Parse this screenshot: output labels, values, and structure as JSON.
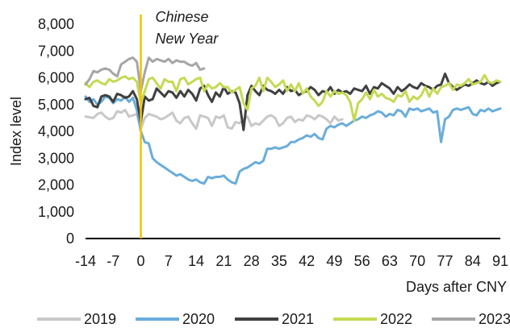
{
  "chart_data": {
    "type": "line",
    "xlabel": "Days after CNY",
    "ylabel": "Index level",
    "xlim": [
      -14,
      91
    ],
    "ylim": [
      0,
      8000
    ],
    "x_ticks": [
      -14,
      -7,
      0,
      7,
      14,
      21,
      28,
      35,
      42,
      49,
      56,
      63,
      70,
      77,
      84,
      91
    ],
    "y_ticks": [
      0,
      1000,
      2000,
      3000,
      4000,
      5000,
      6000,
      7000,
      8000
    ],
    "y_tick_labels": [
      "0",
      "1,000",
      "2,000",
      "3,000",
      "4,000",
      "5,000",
      "6,000",
      "7,000",
      "8,000"
    ],
    "grid": false,
    "legend_position": "bottom",
    "annotation": {
      "x": 0,
      "line1": "Chinese",
      "line2": "New Year",
      "color": "#F2C200"
    },
    "series": [
      {
        "name": "2019",
        "color": "#c8c8c8",
        "x": [
          -14,
          -12,
          -11,
          -10,
          -9,
          -8,
          -7,
          -6,
          -5,
          -4,
          -3,
          -2,
          -1,
          0,
          1,
          2,
          3,
          4,
          5,
          6,
          7,
          8,
          9,
          10,
          11,
          12,
          13,
          14,
          15,
          16,
          17,
          18,
          19,
          20,
          21,
          22,
          23,
          24,
          25,
          26,
          27,
          28,
          29,
          30,
          31,
          32,
          33,
          34,
          35,
          36,
          37,
          38,
          39,
          40,
          41,
          42,
          43,
          44,
          45,
          46,
          47,
          48,
          49,
          50,
          51
        ],
        "values": [
          4550,
          4500,
          4650,
          4700,
          4550,
          4450,
          4500,
          4750,
          4700,
          4800,
          4550,
          4600,
          4650,
          4100,
          4500,
          4650,
          4600,
          4550,
          4450,
          4500,
          4600,
          4700,
          4400,
          4300,
          4500,
          4550,
          4300,
          4100,
          4600,
          4550,
          4500,
          4200,
          4550,
          4500,
          4600,
          4150,
          4100,
          4350,
          4300,
          4450,
          4550,
          4200,
          4300,
          4250,
          4400,
          4550,
          4600,
          4500,
          4200,
          4300,
          4500,
          4550,
          4350,
          4450,
          4400,
          4600,
          4550,
          4450,
          4600,
          4550,
          4450,
          4300,
          4550,
          4400,
          4450
        ]
      },
      {
        "name": "2020",
        "color": "#6AADDB",
        "x": [
          -14,
          -13,
          -12,
          -11,
          -10,
          -9,
          -8,
          -7,
          -6,
          -5,
          -4,
          -3,
          -2,
          -1,
          0,
          1,
          2,
          3,
          4,
          5,
          6,
          7,
          8,
          9,
          10,
          11,
          12,
          13,
          14,
          15,
          16,
          17,
          18,
          19,
          20,
          21,
          22,
          23,
          24,
          25,
          26,
          27,
          28,
          29,
          30,
          31,
          32,
          33,
          34,
          35,
          36,
          37,
          38,
          39,
          40,
          41,
          42,
          43,
          44,
          45,
          46,
          47,
          48,
          49,
          50,
          51,
          52,
          53,
          54,
          55,
          56,
          57,
          58,
          59,
          60,
          61,
          62,
          63,
          64,
          65,
          66,
          67,
          68,
          69,
          70,
          71,
          72,
          73,
          74,
          75,
          76,
          77,
          78,
          79,
          80,
          81,
          82,
          83,
          84,
          85,
          86,
          87,
          88,
          89,
          90,
          91
        ],
        "values": [
          5300,
          5100,
          5200,
          5000,
          5100,
          5300,
          5250,
          5050,
          5200,
          5150,
          5300,
          5100,
          5250,
          4800,
          4000,
          3600,
          3550,
          3000,
          2850,
          2750,
          2650,
          2550,
          2450,
          2350,
          2400,
          2300,
          2200,
          2150,
          2200,
          2100,
          2050,
          2300,
          2250,
          2300,
          2300,
          2350,
          2200,
          2100,
          2050,
          2500,
          2600,
          2650,
          2750,
          2850,
          2800,
          2900,
          3350,
          3350,
          3400,
          3350,
          3400,
          3450,
          3600,
          3600,
          3700,
          3750,
          3850,
          3800,
          3900,
          3750,
          3700,
          4100,
          4200,
          4150,
          4250,
          4300,
          4200,
          4300,
          4400,
          4450,
          4550,
          4500,
          4600,
          4650,
          4750,
          4700,
          4550,
          4650,
          4600,
          4800,
          4750,
          4550,
          4850,
          4800,
          4850,
          4750,
          4800,
          4850,
          4700,
          4750,
          3600,
          4450,
          4550,
          4800,
          4850,
          4800,
          4850,
          4900,
          4650,
          4600,
          4800,
          4750,
          4850,
          4750,
          4800,
          4850
        ]
      },
      {
        "name": "2021",
        "color": "#404040",
        "x": [
          -14,
          -13,
          -12,
          -11,
          -10,
          -9,
          -8,
          -7,
          -6,
          -5,
          -4,
          -3,
          -2,
          -1,
          0,
          1,
          2,
          3,
          4,
          5,
          6,
          7,
          8,
          9,
          10,
          11,
          12,
          13,
          14,
          15,
          16,
          17,
          18,
          19,
          20,
          21,
          22,
          23,
          24,
          25,
          26,
          27,
          28,
          29,
          30,
          31,
          32,
          33,
          34,
          35,
          36,
          37,
          38,
          39,
          40,
          41,
          42,
          43,
          44,
          45,
          46,
          47,
          48,
          49,
          50,
          51,
          52,
          53,
          54,
          55,
          56,
          57,
          58,
          59,
          60,
          61,
          62,
          63,
          64,
          65,
          66,
          67,
          68,
          69,
          70,
          71,
          72,
          73,
          74,
          75,
          76,
          77,
          78,
          79,
          80,
          81,
          82,
          83,
          84,
          85,
          86,
          87,
          88,
          89,
          90,
          91
        ],
        "values": [
          5200,
          5250,
          4950,
          4900,
          5300,
          5350,
          5300,
          5100,
          5400,
          5350,
          5250,
          5300,
          5500,
          5200,
          4350,
          5300,
          5150,
          5200,
          5600,
          5450,
          5300,
          5500,
          5450,
          5250,
          5500,
          5300,
          5550,
          5400,
          5150,
          5600,
          5700,
          5350,
          5100,
          5450,
          5300,
          5650,
          5400,
          5500,
          5450,
          5050,
          4050,
          5350,
          5700,
          5500,
          5350,
          5700,
          5550,
          5500,
          5400,
          5550,
          5400,
          5650,
          5500,
          5550,
          5350,
          5450,
          5500,
          5650,
          5550,
          5350,
          5500,
          5450,
          5650,
          5400,
          5550,
          5450,
          5500,
          5400,
          5600,
          5550,
          5500,
          5700,
          5400,
          5650,
          5600,
          5800,
          5700,
          5600,
          5400,
          5650,
          5500,
          5600,
          5750,
          5650,
          5600,
          5800,
          5700,
          5650,
          5550,
          5700,
          5750,
          6150,
          5800,
          5650,
          5550,
          5650,
          5750,
          5700,
          5800,
          5900,
          5800,
          5750,
          5850,
          5700,
          5800,
          5850
        ]
      },
      {
        "name": "2022",
        "color": "#C6D955",
        "x": [
          -14,
          -13,
          -12,
          -11,
          -10,
          -9,
          -8,
          -7,
          -6,
          -5,
          -4,
          -3,
          -2,
          -1,
          0,
          1,
          2,
          3,
          4,
          5,
          6,
          7,
          8,
          9,
          10,
          11,
          12,
          13,
          14,
          15,
          16,
          17,
          18,
          19,
          20,
          21,
          22,
          23,
          24,
          25,
          26,
          27,
          28,
          29,
          30,
          31,
          32,
          33,
          34,
          35,
          36,
          37,
          38,
          39,
          40,
          41,
          42,
          43,
          44,
          45,
          46,
          47,
          48,
          49,
          50,
          51,
          52,
          53,
          54,
          55,
          56,
          57,
          58,
          59,
          60,
          61,
          62,
          63,
          64,
          65,
          66,
          67,
          68,
          69,
          70,
          71,
          72,
          73,
          74,
          75,
          76,
          77,
          78,
          79,
          80,
          81,
          82,
          83,
          84,
          85,
          86,
          87,
          88,
          89,
          90,
          91
        ],
        "values": [
          5800,
          5650,
          5850,
          5900,
          5800,
          5750,
          5950,
          5850,
          5900,
          6000,
          6050,
          5950,
          6000,
          5850,
          5050,
          5500,
          5950,
          6000,
          5800,
          5600,
          5950,
          5850,
          5850,
          5500,
          5950,
          6000,
          5750,
          5850,
          5950,
          6000,
          5500,
          5750,
          5600,
          5650,
          5800,
          5650,
          5650,
          5450,
          5550,
          5650,
          5050,
          4800,
          5600,
          5700,
          6000,
          5500,
          6000,
          5850,
          5650,
          5750,
          5900,
          5500,
          5750,
          5500,
          5800,
          5400,
          5600,
          5300,
          5150,
          4950,
          5100,
          5500,
          5300,
          5500,
          5400,
          5450,
          5350,
          5100,
          4400,
          5050,
          5200,
          5450,
          5200,
          5550,
          5300,
          5400,
          5250,
          5200,
          5100,
          5350,
          5300,
          5500,
          5100,
          5300,
          5200,
          5350,
          5650,
          5300,
          5600,
          5400,
          5650,
          5700,
          5800,
          5550,
          5750,
          5700,
          5800,
          5950,
          5750,
          5800,
          5850,
          6100,
          5850,
          5800,
          5900,
          5850
        ]
      },
      {
        "name": "2023",
        "color": "#A6A6A6",
        "x": [
          -14,
          -13,
          -12,
          -11,
          -10,
          -9,
          -8,
          -7,
          -6,
          -5,
          -4,
          -3,
          -2,
          -1,
          0,
          1,
          2,
          3,
          4,
          5,
          6,
          7,
          8,
          9,
          10,
          11,
          12,
          13,
          14,
          15,
          16
        ],
        "values": [
          5750,
          5950,
          6250,
          6200,
          6300,
          6350,
          6300,
          6150,
          6050,
          6500,
          6600,
          6700,
          6750,
          6600,
          5500,
          6200,
          6750,
          6600,
          6700,
          6650,
          6600,
          6700,
          6550,
          6650,
          6600,
          6600,
          6500,
          6450,
          6550,
          6300,
          6350
        ]
      }
    ]
  }
}
